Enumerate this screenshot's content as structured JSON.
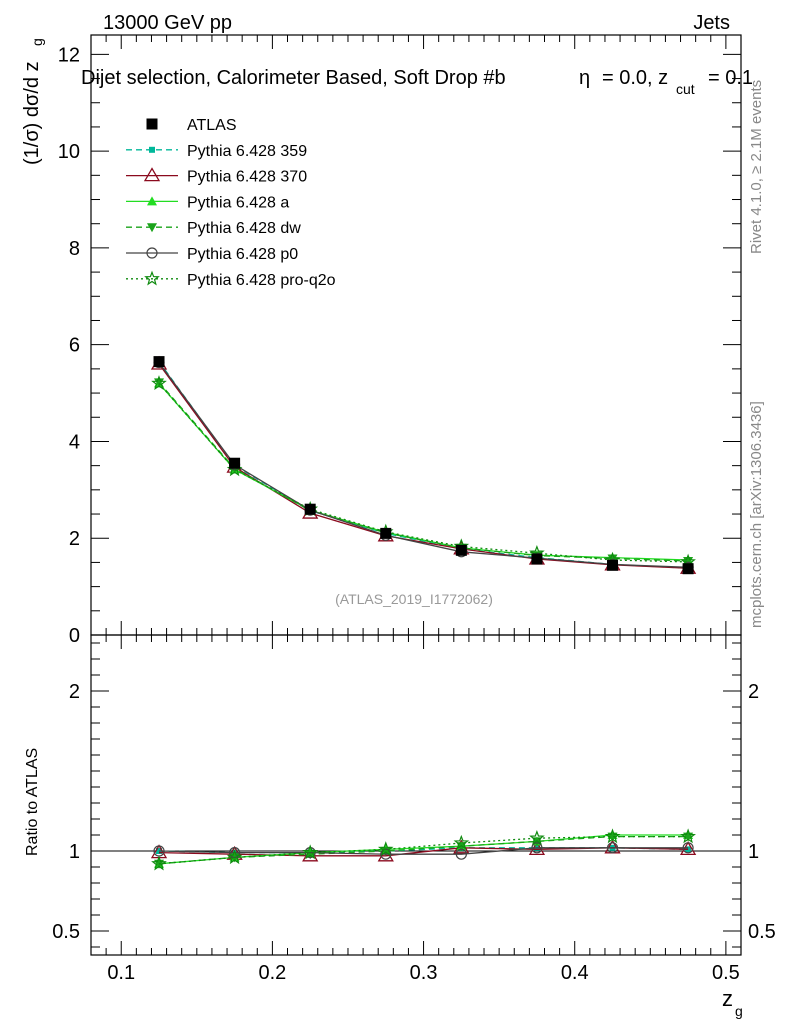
{
  "header": {
    "energy": "13000 GeV pp",
    "category": "Jets",
    "title": "Dijet selection, Calorimeter Based, Soft Drop #b",
    "title_eta": "= 0.0, z",
    "title_cut_sub": "cut",
    "title_end": "= 0.1",
    "title_beta_glyph": "η"
  },
  "side_labels": {
    "rivet": "Rivet 4.1.0, ≥ 2.1M events",
    "mcplots": "mcplots.cern.ch [arXiv:1306.3436]"
  },
  "watermark": "(ATLAS_2019_I1772062)",
  "colors": {
    "atlas": "#000000",
    "p359": "#00b89a",
    "p370": "#8b0a1e",
    "pa": "#22dd22",
    "pdw": "#1aa31a",
    "pp0": "#444444",
    "pq2o": "#0e8a0e"
  },
  "chart_data": [
    {
      "panel": "main",
      "type": "line",
      "ylabel": "(1/σ) dσ/d z",
      "ylabel_sub": "g",
      "xlim": [
        0.08,
        0.51
      ],
      "ylim": [
        0,
        12.4
      ],
      "yticks": [
        0,
        2,
        4,
        6,
        8,
        10,
        12
      ],
      "ytick_labels": [
        "0",
        "2",
        "4",
        "6",
        "8",
        "10",
        "12"
      ],
      "x": [
        0.125,
        0.175,
        0.225,
        0.275,
        0.325,
        0.375,
        0.425,
        0.475
      ],
      "series": [
        {
          "key": "atlas",
          "name": "ATLAS",
          "marker": "square",
          "line": "none",
          "values": [
            5.65,
            3.55,
            2.6,
            2.1,
            1.75,
            1.57,
            1.44,
            1.37
          ]
        },
        {
          "key": "p359",
          "name": "Pythia 6.428 359",
          "marker": "smallsquare",
          "line": "dashed",
          "values": [
            5.65,
            3.5,
            2.57,
            2.1,
            1.78,
            1.6,
            1.46,
            1.38
          ]
        },
        {
          "key": "p370",
          "name": "Pythia 6.428 370",
          "marker": "triangle-open",
          "line": "solid",
          "values": [
            5.6,
            3.47,
            2.52,
            2.05,
            1.78,
            1.57,
            1.45,
            1.38
          ]
        },
        {
          "key": "pa",
          "name": "Pythia 6.428 a",
          "marker": "triangle-filled",
          "line": "solid",
          "values": [
            5.2,
            3.42,
            2.58,
            2.12,
            1.8,
            1.65,
            1.6,
            1.55
          ]
        },
        {
          "key": "pdw",
          "name": "Pythia 6.428 dw",
          "marker": "triangle-down",
          "line": "dashed",
          "values": [
            5.22,
            3.44,
            2.57,
            2.11,
            1.8,
            1.64,
            1.58,
            1.53
          ]
        },
        {
          "key": "pp0",
          "name": "Pythia 6.428 p0",
          "marker": "circle-open",
          "line": "solid",
          "values": [
            5.63,
            3.52,
            2.58,
            2.06,
            1.72,
            1.59,
            1.46,
            1.4
          ]
        },
        {
          "key": "pq2o",
          "name": "Pythia 6.428 pro-q2o",
          "marker": "star",
          "line": "dotted",
          "values": [
            5.2,
            3.42,
            2.6,
            2.13,
            1.83,
            1.69,
            1.55,
            1.51
          ]
        }
      ]
    },
    {
      "panel": "ratio",
      "type": "line",
      "ylabel": "Ratio to ATLAS",
      "xlabel": "z",
      "xlabel_sub": "g",
      "xlim": [
        0.08,
        0.51
      ],
      "xticks": [
        0.1,
        0.2,
        0.3,
        0.4,
        0.5
      ],
      "xtick_labels": [
        "0.1",
        "0.2",
        "0.3",
        "0.4",
        "0.5"
      ],
      "ylim": [
        0.35,
        2.35
      ],
      "yticks": [
        0.5,
        1,
        2
      ],
      "ytick_labels": [
        "0.5",
        "1",
        "2"
      ],
      "x": [
        0.125,
        0.175,
        0.225,
        0.275,
        0.325,
        0.375,
        0.425,
        0.475
      ],
      "series": [
        {
          "key": "p359",
          "values": [
            1.0,
            0.99,
            0.99,
            1.0,
            1.02,
            1.02,
            1.02,
            1.01
          ]
        },
        {
          "key": "p370",
          "values": [
            0.99,
            0.98,
            0.97,
            0.97,
            1.02,
            1.01,
            1.02,
            1.01
          ]
        },
        {
          "key": "pa",
          "values": [
            0.92,
            0.96,
            0.99,
            1.01,
            1.03,
            1.06,
            1.1,
            1.1
          ]
        },
        {
          "key": "pdw",
          "values": [
            0.92,
            0.96,
            0.98,
            1.0,
            1.03,
            1.06,
            1.09,
            1.09
          ]
        },
        {
          "key": "pp0",
          "values": [
            1.0,
            0.99,
            0.99,
            0.98,
            0.98,
            1.02,
            1.02,
            1.02
          ]
        },
        {
          "key": "pq2o",
          "values": [
            0.92,
            0.96,
            0.99,
            1.01,
            1.05,
            1.08,
            1.09,
            1.09
          ]
        }
      ]
    }
  ]
}
